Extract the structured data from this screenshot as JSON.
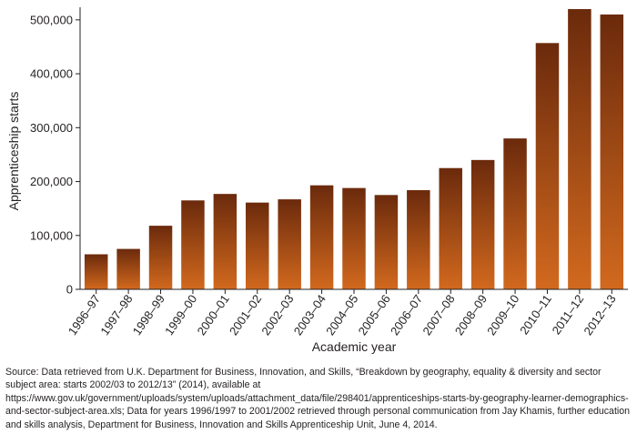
{
  "chart_data": {
    "type": "bar",
    "title": "",
    "xlabel": "Academic year",
    "ylabel": "Apprenticeship starts",
    "ylim": [
      0,
      520000
    ],
    "yticks": [
      0,
      100000,
      200000,
      300000,
      400000,
      500000
    ],
    "ytick_labels": [
      "0",
      "100,000",
      "200,000",
      "300,000",
      "400,000",
      "500,000"
    ],
    "categories": [
      "1996–97",
      "1997–98",
      "1998–99",
      "1999–00",
      "2000–01",
      "2001–02",
      "2002–03",
      "2003–04",
      "2004–05",
      "2005–06",
      "2006–07",
      "2007–08",
      "2008–09",
      "2009–10",
      "2010–11",
      "2011–12",
      "2012–13"
    ],
    "values": [
      65000,
      75000,
      118000,
      165000,
      177000,
      161000,
      167000,
      193000,
      188000,
      175000,
      184000,
      225000,
      240000,
      280000,
      457000,
      520000,
      510000
    ],
    "bar_color_top": "#6b2a0c",
    "bar_color_bottom": "#d2691e",
    "axis_color": "#231f20"
  },
  "source_note": "Source: Data retrieved from U.K. Department for Business, Innovation, and Skills, “Breakdown by geography, equality & diversity and sector subject area: starts 2002/03 to 2012/13” (2014), available at https://www.gov.uk/government/uploads/system/uploads/attachment_data/file/298401/apprenticeships-starts-by-geography-learner-demographics-and-sector-subject-area.xls; Data for years 1996/1997 to 2001/2002 retrieved through personal communication from Jay Khamis, further education and skills analysis, Department for Business, Innovation and Skills Apprenticeship Unit, June 4, 2014."
}
